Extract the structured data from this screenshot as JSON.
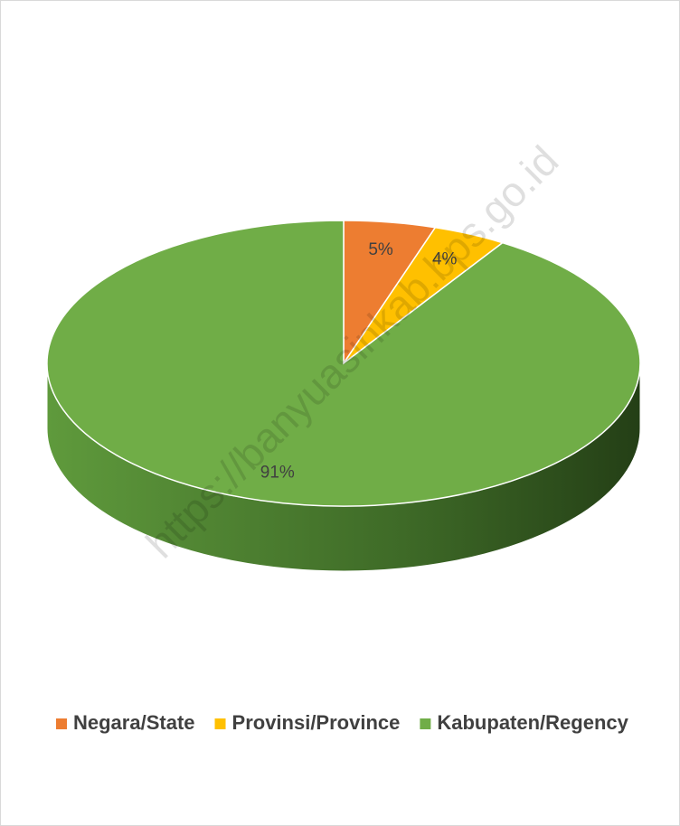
{
  "chart_data": {
    "type": "pie",
    "categories": [
      "Negara/State",
      "Provinsi/Province",
      "Kabupaten/Regency"
    ],
    "values": [
      5,
      4,
      91
    ],
    "value_labels": [
      "5%",
      "4%",
      "91%"
    ],
    "colors": [
      "#ED7D31",
      "#FFC000",
      "#70AD47"
    ],
    "legend": "bottom",
    "watermark": "https://banyuasinkab.bps.go.id"
  }
}
